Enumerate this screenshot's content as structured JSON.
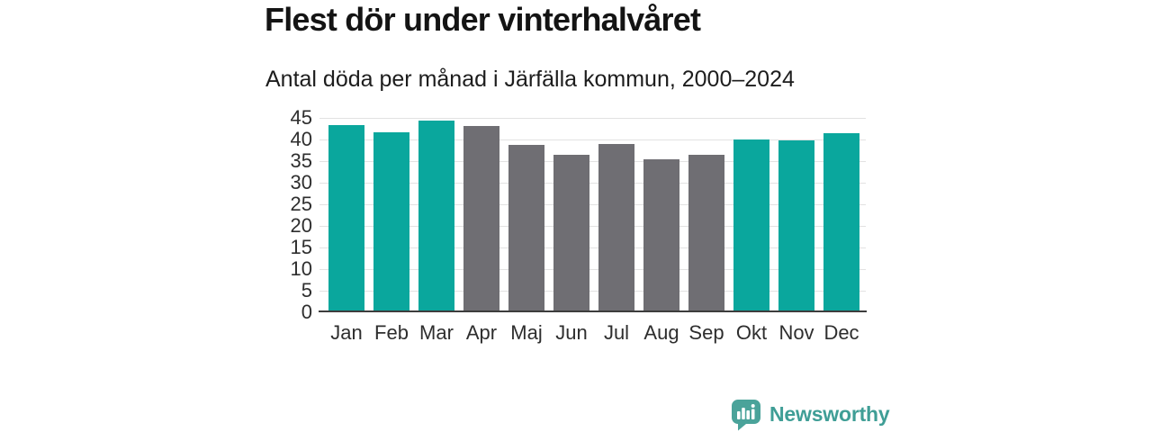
{
  "header": {
    "title": "Flest dör under vinterhalvåret",
    "subtitle": "Antal döda per månad i Järfälla kommun, 2000–2024"
  },
  "chart_data": {
    "type": "bar",
    "title": "Flest dör under vinterhalvåret",
    "subtitle": "Antal döda per månad i Järfälla kommun, 2000–2024",
    "categories": [
      "Jan",
      "Feb",
      "Mar",
      "Apr",
      "Maj",
      "Jun",
      "Jul",
      "Aug",
      "Sep",
      "Okt",
      "Nov",
      "Dec"
    ],
    "values": [
      43.3,
      41.7,
      44.3,
      43.2,
      38.7,
      36.4,
      38.9,
      35.4,
      36.5,
      40.1,
      39.7,
      41.5
    ],
    "bar_groups": [
      "winter",
      "winter",
      "winter",
      "summer",
      "summer",
      "summer",
      "summer",
      "summer",
      "summer",
      "winter",
      "winter",
      "winter"
    ],
    "group_colors": {
      "winter": "#0aa79d",
      "summer": "#6f6e73"
    },
    "xlabel": "",
    "ylabel": "",
    "ylim": [
      0,
      45
    ],
    "yticks": [
      0,
      5,
      10,
      15,
      20,
      25,
      30,
      35,
      40,
      45
    ],
    "grid": true,
    "legend_position": "none",
    "gridline_color": "#e2e2e2",
    "axis_color": "#3d3d3d",
    "tick_label_color": "#2e2e2e"
  },
  "footer": {
    "brand_name": "Newsworthy",
    "logo_icon": "newsworthy-speech-bubble-bar-chart-icon",
    "brand_color": "#3f9e96",
    "icon_color": "#4aa39a"
  }
}
